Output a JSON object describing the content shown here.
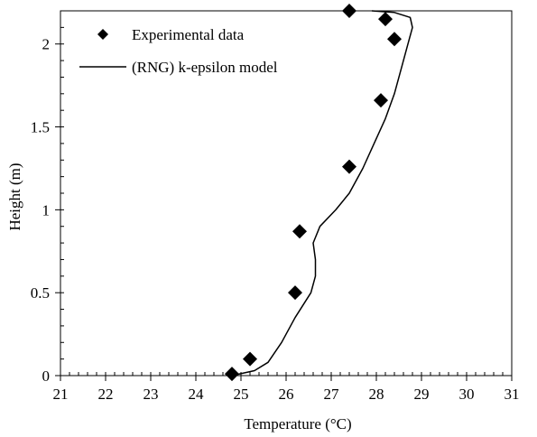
{
  "chart_data": {
    "type": "scatter",
    "xlabel": "Temperature (°C)",
    "ylabel": "Height (m)",
    "xlim": [
      21,
      31
    ],
    "ylim": [
      0,
      2.2
    ],
    "x_ticks": [
      21,
      22,
      23,
      24,
      25,
      26,
      27,
      28,
      29,
      30,
      31
    ],
    "y_ticks": [
      0,
      0.5,
      1,
      1.5,
      2
    ],
    "x_minor_step": 0.2,
    "y_minor_step": 0.1,
    "grid": false,
    "legend_position": "top-left",
    "series": [
      {
        "name": "Experimental data",
        "kind": "marker",
        "marker": "diamond",
        "color": "#000000",
        "points": [
          {
            "x": 24.8,
            "y": 0.01
          },
          {
            "x": 25.2,
            "y": 0.1
          },
          {
            "x": 26.2,
            "y": 0.5
          },
          {
            "x": 26.3,
            "y": 0.87
          },
          {
            "x": 27.4,
            "y": 1.26
          },
          {
            "x": 28.1,
            "y": 1.66
          },
          {
            "x": 28.4,
            "y": 2.03
          },
          {
            "x": 28.2,
            "y": 2.15
          },
          {
            "x": 27.4,
            "y": 2.2
          }
        ]
      },
      {
        "name": "(RNG) k-epsilon model",
        "kind": "line",
        "color": "#000000",
        "points": [
          {
            "x": 24.8,
            "y": 0.0
          },
          {
            "x": 25.3,
            "y": 0.03
          },
          {
            "x": 25.6,
            "y": 0.08
          },
          {
            "x": 25.9,
            "y": 0.2
          },
          {
            "x": 26.2,
            "y": 0.35
          },
          {
            "x": 26.55,
            "y": 0.5
          },
          {
            "x": 26.65,
            "y": 0.6
          },
          {
            "x": 26.65,
            "y": 0.7
          },
          {
            "x": 26.6,
            "y": 0.8
          },
          {
            "x": 26.75,
            "y": 0.9
          },
          {
            "x": 27.1,
            "y": 1.0
          },
          {
            "x": 27.4,
            "y": 1.1
          },
          {
            "x": 27.7,
            "y": 1.25
          },
          {
            "x": 27.95,
            "y": 1.4
          },
          {
            "x": 28.2,
            "y": 1.55
          },
          {
            "x": 28.4,
            "y": 1.7
          },
          {
            "x": 28.55,
            "y": 1.85
          },
          {
            "x": 28.7,
            "y": 2.0
          },
          {
            "x": 28.8,
            "y": 2.1
          },
          {
            "x": 28.75,
            "y": 2.16
          },
          {
            "x": 28.4,
            "y": 2.19
          },
          {
            "x": 27.9,
            "y": 2.2
          }
        ]
      }
    ]
  }
}
